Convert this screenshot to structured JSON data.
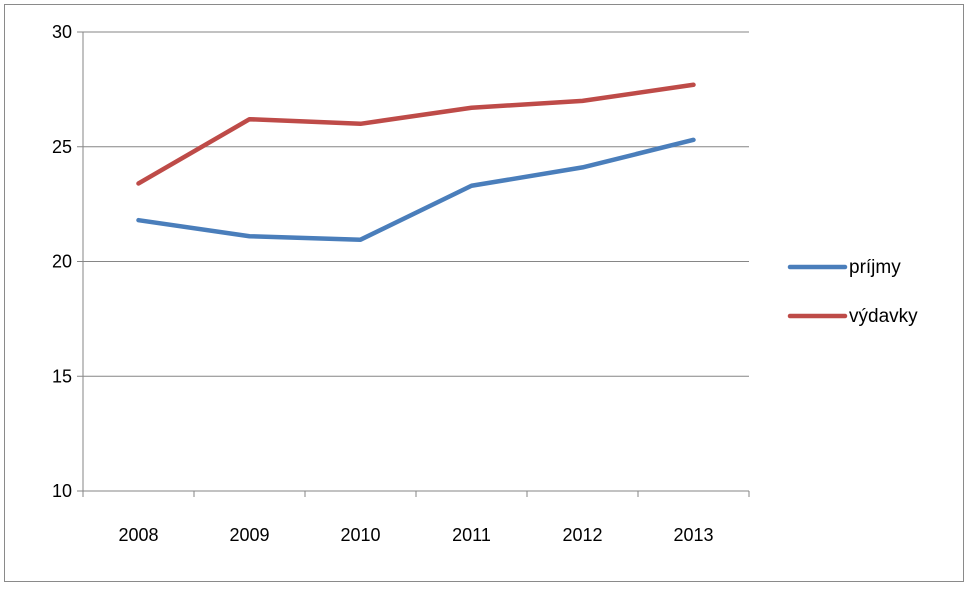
{
  "chart_data": {
    "type": "line",
    "categories": [
      "2008",
      "2009",
      "2010",
      "2011",
      "2012",
      "2013"
    ],
    "series": [
      {
        "name": "príjmy",
        "color": "#4a7ebb",
        "values": [
          21.8,
          21.1,
          20.95,
          23.3,
          24.1,
          25.3
        ]
      },
      {
        "name": "výdavky",
        "color": "#be4b48",
        "values": [
          23.4,
          26.2,
          26.0,
          26.7,
          27.0,
          27.7
        ]
      }
    ],
    "ylim": [
      10,
      30
    ],
    "yticks": [
      10,
      15,
      20,
      25,
      30
    ],
    "grid": true,
    "legend": "right",
    "title": "",
    "xlabel": "",
    "ylabel": ""
  }
}
